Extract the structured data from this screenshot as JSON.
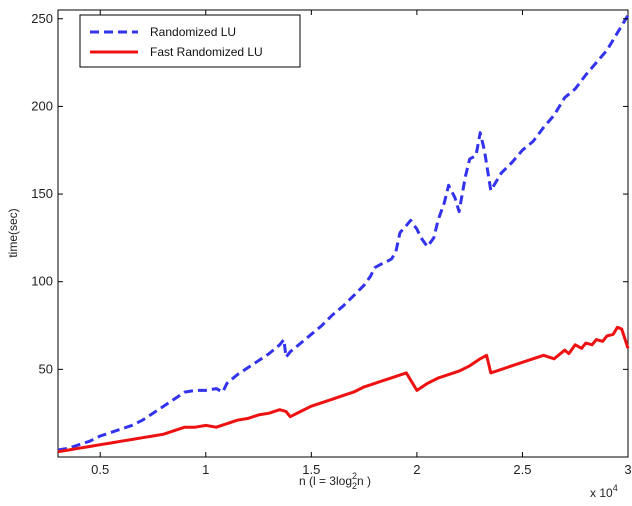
{
  "chart_data": {
    "type": "line",
    "xlabel": {
      "prefix": "n (l  = 3log",
      "sub": "2",
      "sup": "2",
      "suffix": "n )"
    },
    "ylabel": "time(sec)",
    "x_multiplier_label": {
      "base": "x 10",
      "exp": "4"
    },
    "xlim": [
      0.3,
      3.0
    ],
    "ylim": [
      0,
      255
    ],
    "x_ticks": [
      0.5,
      1,
      1.5,
      2,
      2.5,
      3
    ],
    "x_tick_labels": [
      "0.5",
      "1",
      "1.5",
      "2",
      "2.5",
      "3"
    ],
    "y_ticks": [
      50,
      100,
      150,
      200,
      250
    ],
    "y_tick_labels": [
      "50",
      "100",
      "150",
      "200",
      "250"
    ],
    "grid": false,
    "legend_position": "top-left",
    "series": [
      {
        "name": "Randomized LU",
        "color": "#3333ee",
        "dash": "dashed",
        "x": [
          0.3,
          0.35,
          0.4,
          0.45,
          0.5,
          0.55,
          0.6,
          0.65,
          0.7,
          0.75,
          0.8,
          0.85,
          0.9,
          0.95,
          1.0,
          1.05,
          1.08,
          1.1,
          1.15,
          1.2,
          1.25,
          1.3,
          1.35,
          1.37,
          1.38,
          1.4,
          1.45,
          1.5,
          1.55,
          1.6,
          1.65,
          1.7,
          1.75,
          1.78,
          1.8,
          1.83,
          1.85,
          1.88,
          1.9,
          1.92,
          1.95,
          1.97,
          2.0,
          2.02,
          2.05,
          2.08,
          2.1,
          2.13,
          2.15,
          2.18,
          2.2,
          2.23,
          2.25,
          2.28,
          2.3,
          2.32,
          2.35,
          2.4,
          2.45,
          2.5,
          2.55,
          2.6,
          2.65,
          2.7,
          2.75,
          2.8,
          2.85,
          2.9,
          2.95,
          3.0
        ],
        "y": [
          4,
          5,
          7,
          9,
          12,
          14,
          16,
          18,
          21,
          25,
          29,
          33,
          37,
          38,
          38,
          39,
          37,
          42,
          47,
          51,
          55,
          59,
          64,
          67,
          57,
          60,
          65,
          70,
          75,
          81,
          86,
          92,
          98,
          103,
          108,
          110,
          111,
          113,
          117,
          128,
          132,
          135,
          130,
          125,
          120,
          125,
          135,
          145,
          155,
          148,
          140,
          160,
          170,
          172,
          185,
          175,
          152,
          162,
          168,
          175,
          180,
          188,
          195,
          205,
          210,
          218,
          225,
          232,
          242,
          252
        ]
      },
      {
        "name": "Fast Randomized LU",
        "color": "#ee1111",
        "dash": "solid",
        "x": [
          0.3,
          0.35,
          0.4,
          0.45,
          0.5,
          0.55,
          0.6,
          0.65,
          0.7,
          0.75,
          0.8,
          0.85,
          0.9,
          0.95,
          1.0,
          1.05,
          1.1,
          1.15,
          1.2,
          1.25,
          1.3,
          1.35,
          1.38,
          1.4,
          1.45,
          1.5,
          1.55,
          1.6,
          1.65,
          1.7,
          1.75,
          1.8,
          1.85,
          1.9,
          1.95,
          2.0,
          2.05,
          2.1,
          2.15,
          2.2,
          2.25,
          2.3,
          2.33,
          2.35,
          2.4,
          2.45,
          2.5,
          2.55,
          2.6,
          2.65,
          2.7,
          2.72,
          2.75,
          2.78,
          2.8,
          2.83,
          2.85,
          2.88,
          2.9,
          2.93,
          2.95,
          2.97,
          3.0
        ],
        "y": [
          3,
          4,
          5,
          6,
          7,
          8,
          9,
          10,
          11,
          12,
          13,
          15,
          17,
          17,
          18,
          17,
          19,
          21,
          22,
          24,
          25,
          27,
          26,
          23,
          26,
          29,
          31,
          33,
          35,
          37,
          40,
          42,
          44,
          46,
          48,
          38,
          42,
          45,
          47,
          49,
          52,
          56,
          58,
          48,
          50,
          52,
          54,
          56,
          58,
          56,
          61,
          59,
          64,
          62,
          65,
          64,
          67,
          66,
          69,
          70,
          74,
          73,
          62
        ]
      }
    ]
  }
}
